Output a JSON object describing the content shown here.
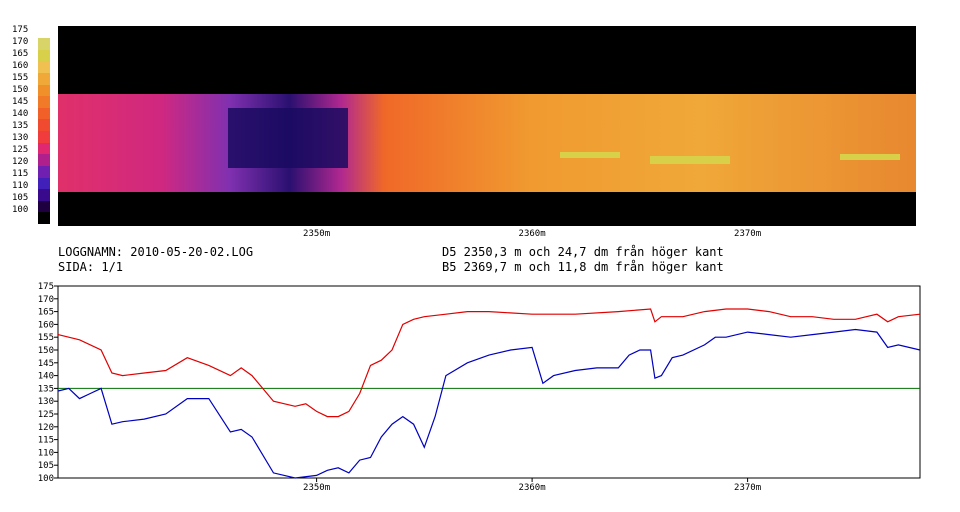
{
  "heatmap": {
    "scale_labels": [
      "175",
      "170",
      "165",
      "160",
      "155",
      "150",
      "145",
      "140",
      "135",
      "130",
      "125",
      "120",
      "115",
      "110",
      "105",
      "100"
    ],
    "scale_colors": [
      "#000000",
      "#1e0040",
      "#3a0a8c",
      "#4020b8",
      "#7020b0",
      "#b0208c",
      "#e02870",
      "#f03c3c",
      "#f04a30",
      "#f06028",
      "#f07a28",
      "#f0902a",
      "#f0a838",
      "#f0c050",
      "#d8d048",
      "#d8d468"
    ],
    "x_tick_labels": [
      "2350m",
      "2360m",
      "2370m"
    ]
  },
  "info": {
    "log_name": "LOGGNAMN: 2010-05-20-02.LOG",
    "page": "SIDA: 1/1",
    "marker_d5": "D5 2350,3 m och 24,7 dm från höger kant",
    "marker_b5": "B5 2369,7 m och 11,8 dm från höger kant"
  },
  "chart_data": {
    "type": "line",
    "x_unit": "m",
    "xlim": [
      2338,
      2378
    ],
    "ylim": [
      100,
      175
    ],
    "x_ticks": [
      2350,
      2360,
      2370
    ],
    "x_tick_labels": [
      "2350m",
      "2360m",
      "2370m"
    ],
    "y_ticks": [
      100,
      105,
      110,
      115,
      120,
      125,
      130,
      135,
      140,
      145,
      150,
      155,
      160,
      165,
      170,
      175
    ],
    "grid": false,
    "reference_line": {
      "y": 135,
      "color": "#007000"
    },
    "series": [
      {
        "color": "#e00000",
        "x": [
          2338,
          2339,
          2340,
          2340.5,
          2341,
          2342,
          2343,
          2344,
          2345,
          2346,
          2346.5,
          2347,
          2348,
          2349,
          2349.5,
          2350,
          2350.5,
          2351,
          2351.5,
          2352,
          2352.5,
          2353,
          2353.5,
          2354,
          2354.5,
          2355,
          2356,
          2357,
          2358,
          2360,
          2362,
          2364,
          2365.5,
          2365.7,
          2366,
          2366.5,
          2367,
          2368,
          2369,
          2370,
          2371,
          2372,
          2373,
          2374,
          2375,
          2376,
          2376.5,
          2377,
          2378
        ],
        "y": [
          156,
          154,
          150,
          141,
          140,
          141,
          142,
          147,
          144,
          140,
          143,
          140,
          130,
          128,
          129,
          126,
          124,
          124,
          126,
          133,
          144,
          146,
          150,
          160,
          162,
          163,
          164,
          165,
          165,
          164,
          164,
          165,
          166,
          161,
          163,
          163,
          163,
          165,
          166,
          166,
          165,
          163,
          163,
          162,
          162,
          164,
          161,
          163,
          164
        ]
      },
      {
        "color": "#0000c0",
        "x": [
          2338,
          2338.5,
          2339,
          2339.5,
          2340,
          2340.5,
          2341,
          2342,
          2343,
          2344,
          2345,
          2346,
          2346.5,
          2347,
          2348,
          2348.5,
          2349,
          2350,
          2350.5,
          2351,
          2351.5,
          2352,
          2352.5,
          2353,
          2353.5,
          2354,
          2354.5,
          2355,
          2355.5,
          2356,
          2357,
          2358,
          2359,
          2360,
          2360.5,
          2361,
          2362,
          2363,
          2364,
          2364.5,
          2365,
          2365.5,
          2365.7,
          2366,
          2366.5,
          2367,
          2368,
          2368.5,
          2369,
          2370,
          2371,
          2372,
          2373,
          2374,
          2375,
          2376,
          2376.5,
          2377,
          2378
        ],
        "y": [
          134,
          135,
          131,
          133,
          135,
          121,
          122,
          123,
          125,
          131,
          131,
          118,
          119,
          116,
          102,
          101,
          100,
          101,
          103,
          104,
          102,
          107,
          108,
          116,
          121,
          124,
          121,
          112,
          124,
          140,
          145,
          148,
          150,
          151,
          137,
          140,
          142,
          143,
          143,
          148,
          150,
          150,
          139,
          140,
          147,
          148,
          152,
          155,
          155,
          157,
          156,
          155,
          156,
          157,
          158,
          157,
          151,
          152,
          150
        ]
      }
    ]
  }
}
